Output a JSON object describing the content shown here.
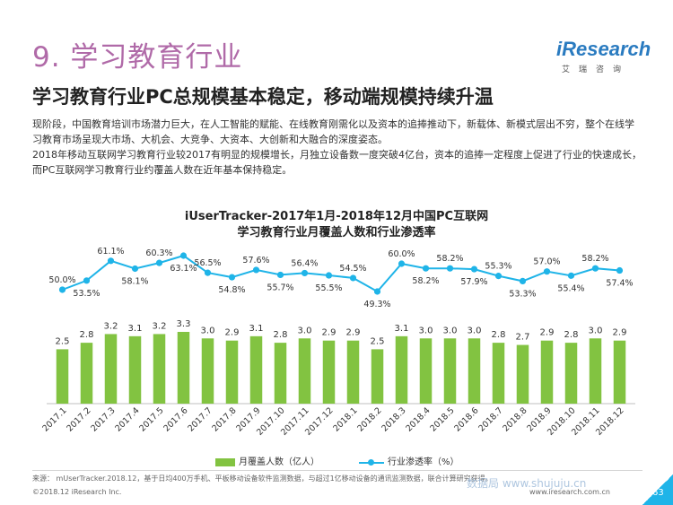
{
  "page": {
    "section_title": "9. 学习教育行业",
    "subtitle": "学习教育行业PC总规模基本稳定，移动端规模持续升温",
    "paragraphs": [
      "现阶段，中国教育培训市场潜力巨大，在人工智能的赋能、在线教育刚需化以及资本的追捧推动下，新载体、新模式层出不穷，整个在线学习教育市场呈现大市场、大机会、大竞争、大资本、大创新和大融合的深度姿态。",
      "2018年移动互联网学习教育行业较2017有明显的规模增长，月独立设备数一度突破4亿台，资本的追捧一定程度上促进了行业的快速成长，而PC互联网学习教育行业约覆盖人数在近年基本保持稳定。"
    ]
  },
  "logo": {
    "word": "iResearch",
    "sub": "艾瑞咨询"
  },
  "chart_data": {
    "type": "bar",
    "title_line1": "iUserTracker-2017年1月-2018年12月中国PC互联网",
    "title_line2": "学习教育行业月覆盖人数和行业渗透率",
    "categories": [
      "2017.1",
      "2017.2",
      "2017.3",
      "2017.4",
      "2017.5",
      "2017.6",
      "2017.7",
      "2017.8",
      "2017.9",
      "2017.10",
      "2017.11",
      "2017.12",
      "2018.1",
      "2018.2",
      "2018.3",
      "2018.4",
      "2018.5",
      "2018.6",
      "2018.7",
      "2018.8",
      "2018.9",
      "2018.10",
      "2018.11",
      "2018.12"
    ],
    "series": [
      {
        "name": "月覆盖人数（亿人）",
        "type": "bar",
        "color": "#82c341",
        "values": [
          2.5,
          2.8,
          3.2,
          3.1,
          3.2,
          3.3,
          3.0,
          2.9,
          3.1,
          2.8,
          3.0,
          2.9,
          2.9,
          2.5,
          3.1,
          3.0,
          3.0,
          3.0,
          2.8,
          2.7,
          2.9,
          2.8,
          3.0,
          2.9
        ],
        "labels": [
          "2.5",
          "2.8",
          "3.2",
          "3.1",
          "3.2",
          "3.3",
          "3.0",
          "2.9",
          "3.1",
          "2.8",
          "3.0",
          "2.9",
          "2.9",
          "2.5",
          "3.1",
          "3.0",
          "3.0",
          "3.0",
          "2.8",
          "2.7",
          "2.9",
          "2.8",
          "3.0",
          "2.9"
        ]
      },
      {
        "name": "行业渗透率（%）",
        "type": "line",
        "color": "#1fb4e8",
        "values": [
          50.0,
          53.5,
          61.1,
          58.1,
          60.3,
          63.1,
          56.5,
          54.8,
          57.6,
          55.7,
          56.4,
          55.5,
          54.5,
          49.3,
          60.0,
          58.2,
          58.2,
          57.9,
          55.3,
          53.3,
          57.0,
          55.4,
          58.2,
          57.4
        ],
        "labels": [
          "50.0%",
          "53.5%",
          "61.1%",
          "58.1%",
          "60.3%",
          "63.1%",
          "56.5%",
          "54.8%",
          "57.6%",
          "55.7%",
          "56.4%",
          "55.5%",
          "54.5%",
          "49.3%",
          "60.0%",
          "58.2%",
          "58.2%",
          "57.9%",
          "55.3%",
          "53.3%",
          "57.0%",
          "55.4%",
          "58.2%",
          "57.4%"
        ],
        "label_pos": [
          "above",
          "below",
          "above",
          "below",
          "above",
          "below",
          "above",
          "below",
          "above",
          "below",
          "above",
          "below",
          "above",
          "below",
          "above",
          "below",
          "above",
          "below",
          "above",
          "below",
          "above",
          "below",
          "above",
          "below"
        ]
      }
    ],
    "legend_position": "bottom",
    "grid": false
  },
  "footer": {
    "source": "来源：  mUserTracker.2018.12，基于日均400万手机、平板移动设备软件监测数据，与超过1亿移动设备的通讯监测数据，联合计算研究获得。",
    "copyright": "©2018.12 iResearch Inc.",
    "website": "www.iresearch.com.cn",
    "watermark": "数据局 www.shujuju.cn",
    "page_number": "63"
  }
}
